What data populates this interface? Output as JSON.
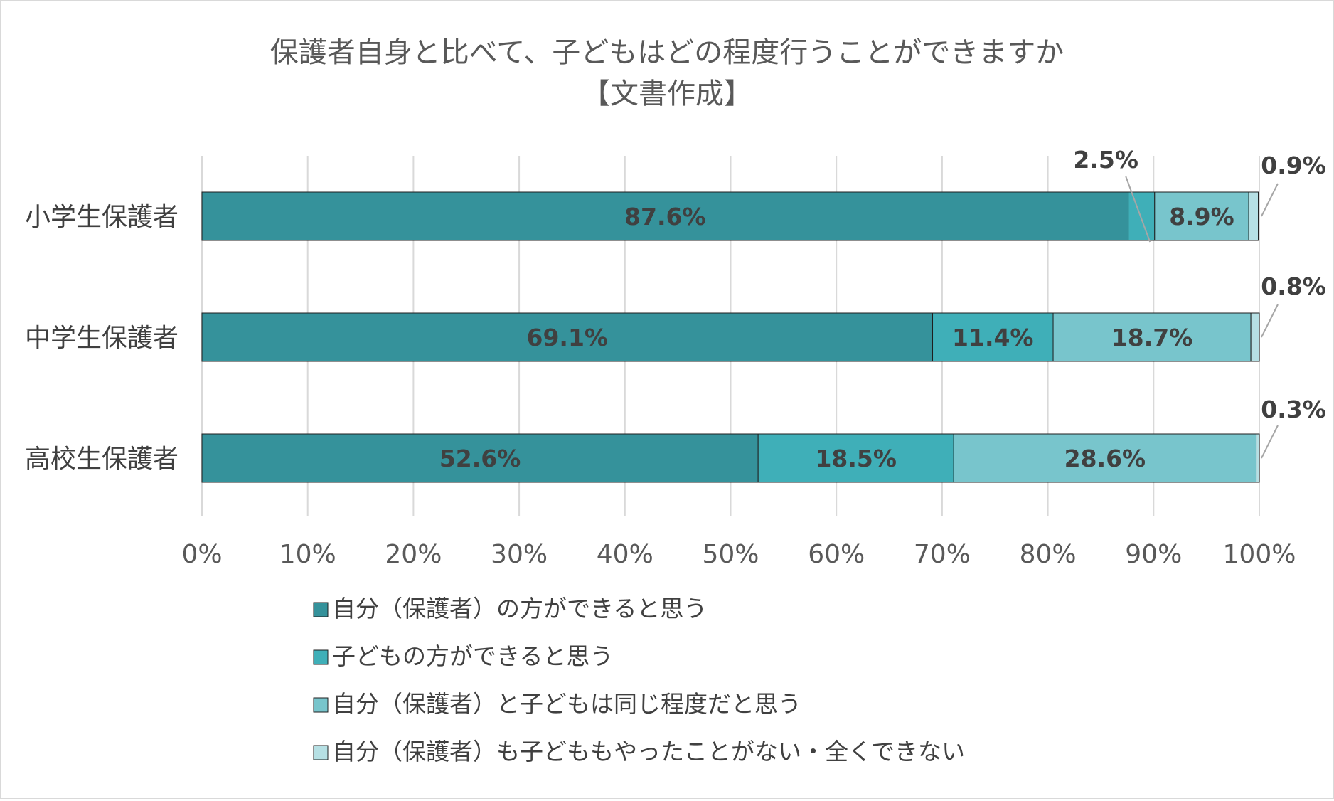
{
  "chart_data": {
    "type": "bar",
    "orientation": "horizontal",
    "stacked": true,
    "title_lines": [
      "保護者自身と比べて、子どもはどの程度行うことができますか",
      "【文書作成】"
    ],
    "categories": [
      "小学生保護者",
      "中学生保護者",
      "高校生保護者"
    ],
    "series": [
      {
        "name": "自分（保護者）の方ができると思う",
        "color": "#35929b",
        "values": [
          87.6,
          69.1,
          52.6
        ],
        "labels": [
          "87.6%",
          "69.1%",
          "52.6%"
        ]
      },
      {
        "name": "子どもの方ができると思う",
        "color": "#3fafb8",
        "values": [
          2.5,
          11.4,
          18.5
        ],
        "labels": [
          "2.5%",
          "11.4%",
          "18.5%"
        ]
      },
      {
        "name": "自分（保護者）と子どもは同じ程度だと思う",
        "color": "#78c5cc",
        "values": [
          8.9,
          18.7,
          28.6
        ],
        "labels": [
          "8.9%",
          "18.7%",
          "28.6%"
        ]
      },
      {
        "name": "自分（保護者）も子どももやったことがない・全くできない",
        "color": "#b6e0e4",
        "values": [
          0.9,
          0.8,
          0.3
        ],
        "labels": [
          "0.9%",
          "0.8%",
          "0.3%"
        ]
      }
    ],
    "xlim": [
      0,
      100
    ],
    "xticks": [
      "0%",
      "10%",
      "20%",
      "30%",
      "40%",
      "50%",
      "60%",
      "70%",
      "80%",
      "90%",
      "100%"
    ],
    "grid": true,
    "legend_position": "bottom"
  }
}
